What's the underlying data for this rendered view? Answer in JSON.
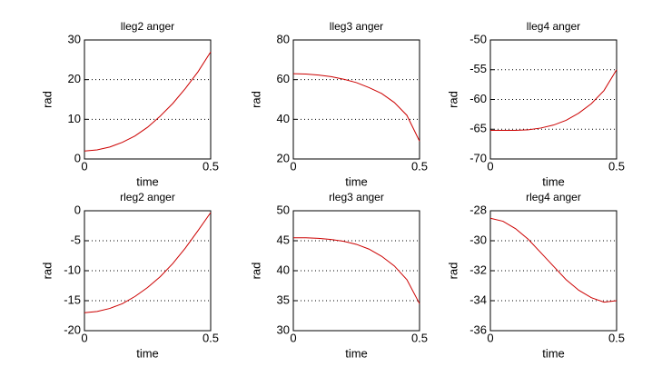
{
  "chart_data": [
    {
      "type": "line",
      "title": "lleg2 anger",
      "xlabel": "time",
      "ylabel": "rad",
      "x": [
        0,
        0.05,
        0.1,
        0.15,
        0.2,
        0.25,
        0.3,
        0.35,
        0.4,
        0.45,
        0.5
      ],
      "series": [
        {
          "color": "#cc0000",
          "values": [
            2,
            2.3,
            3,
            4.2,
            5.8,
            8,
            10.8,
            14,
            17.8,
            22,
            27
          ]
        }
      ],
      "xlim": [
        0,
        0.5
      ],
      "xticks": [
        0,
        0.5
      ],
      "ylim": [
        0,
        30
      ],
      "yticks": [
        0,
        10,
        20,
        30
      ],
      "grid": true
    },
    {
      "type": "line",
      "title": "lleg3 anger",
      "xlabel": "time",
      "ylabel": "rad",
      "x": [
        0,
        0.05,
        0.1,
        0.15,
        0.2,
        0.25,
        0.3,
        0.35,
        0.4,
        0.45,
        0.5
      ],
      "series": [
        {
          "color": "#cc0000",
          "values": [
            63,
            62.8,
            62.3,
            61.5,
            60.2,
            58.5,
            56,
            53,
            48.5,
            42,
            29
          ]
        }
      ],
      "xlim": [
        0,
        0.5
      ],
      "xticks": [
        0,
        0.5
      ],
      "ylim": [
        20,
        80
      ],
      "yticks": [
        20,
        40,
        60,
        80
      ],
      "grid": true
    },
    {
      "type": "line",
      "title": "lleg4 anger",
      "xlabel": "time",
      "ylabel": "rad",
      "x": [
        0,
        0.05,
        0.1,
        0.15,
        0.2,
        0.25,
        0.3,
        0.35,
        0.4,
        0.45,
        0.5
      ],
      "series": [
        {
          "color": "#cc0000",
          "values": [
            -65.2,
            -65.2,
            -65.2,
            -65.1,
            -64.8,
            -64.3,
            -63.5,
            -62.3,
            -60.7,
            -58.5,
            -55
          ]
        }
      ],
      "xlim": [
        0,
        0.5
      ],
      "xticks": [
        0,
        0.5
      ],
      "ylim": [
        -70,
        -50
      ],
      "yticks": [
        -70,
        -65,
        -60,
        -55,
        -50
      ],
      "grid": true
    },
    {
      "type": "line",
      "title": "rleg2 anger",
      "xlabel": "time",
      "ylabel": "rad",
      "x": [
        0,
        0.05,
        0.1,
        0.15,
        0.2,
        0.25,
        0.3,
        0.35,
        0.4,
        0.45,
        0.5
      ],
      "series": [
        {
          "color": "#cc0000",
          "values": [
            -17,
            -16.8,
            -16.3,
            -15.5,
            -14.3,
            -12.8,
            -11,
            -8.8,
            -6.2,
            -3.3,
            -0.3
          ]
        }
      ],
      "xlim": [
        0,
        0.5
      ],
      "xticks": [
        0,
        0.5
      ],
      "ylim": [
        -20,
        0
      ],
      "yticks": [
        -20,
        -15,
        -10,
        -5,
        0
      ],
      "grid": true
    },
    {
      "type": "line",
      "title": "rleg3 anger",
      "xlabel": "time",
      "ylabel": "rad",
      "x": [
        0,
        0.05,
        0.1,
        0.15,
        0.2,
        0.25,
        0.3,
        0.35,
        0.4,
        0.45,
        0.5
      ],
      "series": [
        {
          "color": "#cc0000",
          "values": [
            45.5,
            45.5,
            45.4,
            45.2,
            44.9,
            44.4,
            43.6,
            42.4,
            40.8,
            38.5,
            34.5
          ]
        }
      ],
      "xlim": [
        0,
        0.5
      ],
      "xticks": [
        0,
        0.5
      ],
      "ylim": [
        30,
        50
      ],
      "yticks": [
        30,
        35,
        40,
        45,
        50
      ],
      "grid": true
    },
    {
      "type": "line",
      "title": "rleg4 anger",
      "xlabel": "time",
      "ylabel": "rad",
      "x": [
        0,
        0.05,
        0.1,
        0.15,
        0.2,
        0.25,
        0.3,
        0.35,
        0.4,
        0.45,
        0.5
      ],
      "series": [
        {
          "color": "#cc0000",
          "values": [
            -28.5,
            -28.7,
            -29.2,
            -29.9,
            -30.8,
            -31.7,
            -32.6,
            -33.3,
            -33.8,
            -34.1,
            -34
          ]
        }
      ],
      "xlim": [
        0,
        0.5
      ],
      "xticks": [
        0,
        0.5
      ],
      "ylim": [
        -36,
        -28
      ],
      "yticks": [
        -36,
        -34,
        -32,
        -30,
        -28
      ],
      "grid": true
    }
  ]
}
